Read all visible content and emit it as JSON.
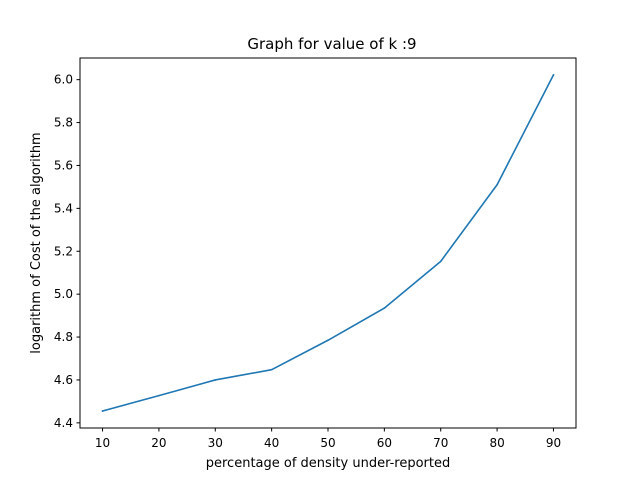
{
  "chart_data": {
    "type": "line",
    "title": "Graph for value of k :9",
    "xlabel": "percentage of density under-reported",
    "ylabel": "logarithm of Cost of the algorithm",
    "x": [
      10,
      20,
      30,
      40,
      50,
      60,
      70,
      80,
      90
    ],
    "series": [
      {
        "values": [
          4.455,
          4.527,
          4.6,
          4.648,
          4.785,
          4.935,
          5.153,
          5.51,
          6.022
        ],
        "color": "#1f77b4"
      }
    ],
    "xlim": [
      6,
      94
    ],
    "ylim": [
      4.376,
      6.101
    ],
    "xticks": [
      10,
      20,
      30,
      40,
      50,
      60,
      70,
      80,
      90
    ],
    "xtick_labels": [
      "10",
      "20",
      "30",
      "40",
      "50",
      "60",
      "70",
      "80",
      "90"
    ],
    "yticks": [
      4.4,
      4.6,
      4.8,
      5.0,
      5.2,
      5.4,
      5.6,
      5.8,
      6.0
    ],
    "ytick_labels": [
      "4.4",
      "4.6",
      "4.8",
      "5.0",
      "5.2",
      "5.4",
      "5.6",
      "5.8",
      "6.0"
    ],
    "grid": false,
    "legend": "none"
  }
}
